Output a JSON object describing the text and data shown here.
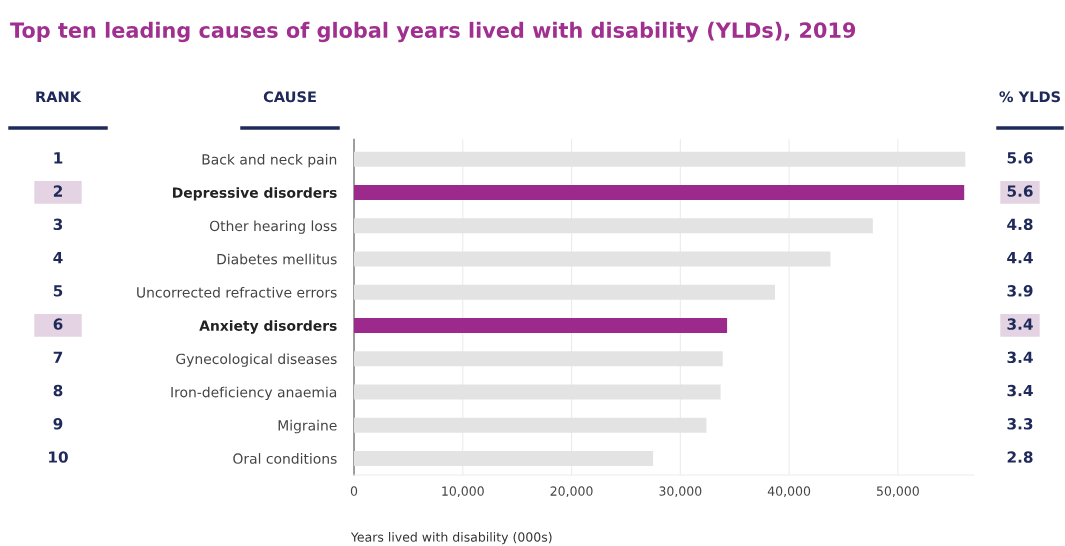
{
  "chart_data": {
    "type": "bar",
    "orientation": "horizontal",
    "title": "Top ten leading causes of global years lived with disability (YLDs), 2019",
    "xlabel": "Years lived with disability (000s)",
    "categories": [
      "Back and neck pain",
      "Depressive disorders",
      "Other hearing loss",
      "Diabetes mellitus",
      "Uncorrected refractive errors",
      "Anxiety disorders",
      "Gynecological diseases",
      "Iron-deficiency anaemia",
      "Migraine",
      "Oral conditions"
    ],
    "values": [
      56200,
      56100,
      47700,
      43800,
      38700,
      34300,
      33900,
      33700,
      32400,
      27500
    ],
    "colors": [
      "#e3e3e3",
      "#9b2a8c",
      "#e3e3e3",
      "#e3e3e3",
      "#e3e3e3",
      "#9b2a8c",
      "#e3e3e3",
      "#e3e3e3",
      "#e3e3e3",
      "#e3e3e3"
    ],
    "xlim": [
      0,
      57000
    ],
    "xticks": [
      0,
      {
        "value": 10000,
        "label": "10,000"
      },
      {
        "value": 20000,
        "label": "20,000"
      },
      {
        "value": 30000,
        "label": "30,000"
      },
      {
        "value": 40000,
        "label": "40,000"
      },
      {
        "value": 50000,
        "label": "50,000"
      }
    ],
    "grid": "x",
    "annotations": [
      "RANK",
      "CAUSE",
      "% YLDS",
      "1",
      "2",
      "3",
      "4",
      "5",
      "6",
      "7",
      "8",
      "9",
      "10",
      "5.6",
      "5.6",
      "4.8",
      "4.4",
      "3.9",
      "3.4",
      "3.4",
      "3.4",
      "3.3",
      "2.8"
    ]
  }
}
